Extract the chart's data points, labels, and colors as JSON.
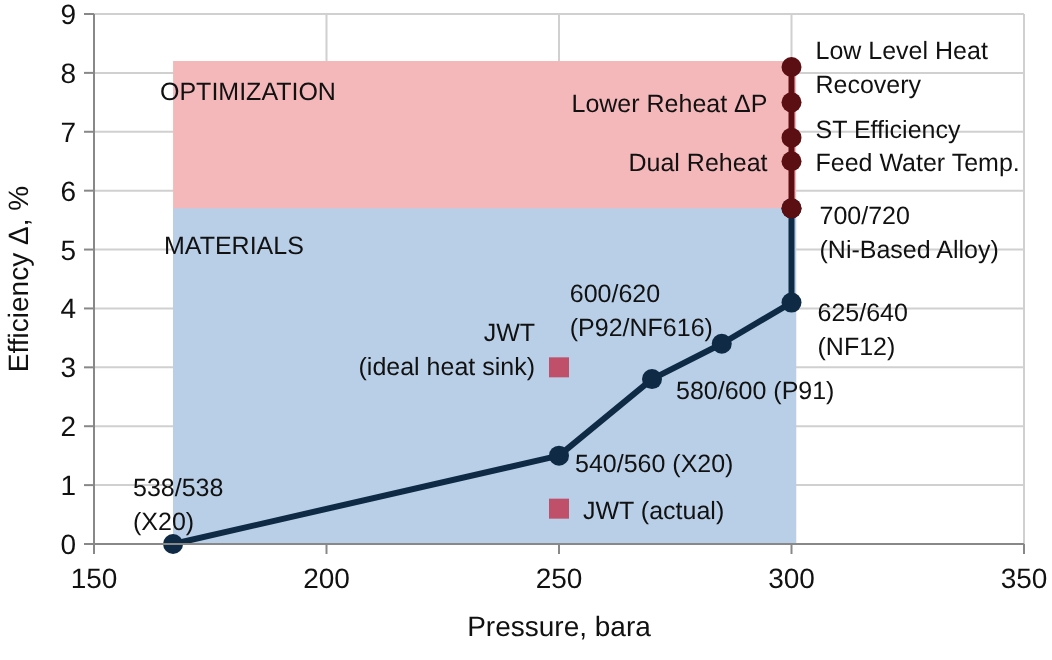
{
  "chart_data": {
    "type": "line",
    "xlabel": "Pressure, bara",
    "ylabel": "Efficiency Δ, %",
    "xlim": [
      150,
      350
    ],
    "xticks": [
      150,
      200,
      250,
      300,
      350
    ],
    "ylim": [
      0,
      9
    ],
    "yticks": [
      0,
      1,
      2,
      3,
      4,
      5,
      6,
      7,
      8,
      9
    ],
    "grid": true,
    "series": [
      {
        "type": "area",
        "color": "#f5b8ba",
        "x": [
          167,
          301
        ],
        "values": [
          8.2,
          8.2
        ]
      },
      {
        "type": "area",
        "color": "#b9cfe7",
        "x": [
          167,
          301
        ],
        "values": [
          5.7,
          5.7
        ]
      },
      {
        "color": "#0e2a44",
        "marker": "circle",
        "x": [
          167,
          250,
          270,
          285,
          300,
          300
        ],
        "values": [
          0,
          1.5,
          2.8,
          3.4,
          4.1,
          5.7
        ]
      },
      {
        "type": "line",
        "color": "#5c0f12",
        "marker": "circle",
        "x": [
          300,
          300,
          300,
          300,
          300
        ],
        "values": [
          5.7,
          6.5,
          6.9,
          7.5,
          8.1
        ]
      },
      {
        "type": "scatter",
        "color": "#c0506a",
        "marker": "square",
        "x": [
          250,
          250
        ],
        "values": [
          3.0,
          0.6
        ]
      }
    ],
    "annotations": [
      "OPTIMIZATION",
      "MATERIALS",
      {
        "text": "538/538\n(X20)",
        "x": 167,
        "y": 0
      },
      {
        "text": "540/560  (X20)",
        "x": 250,
        "y": 1.5
      },
      {
        "text": "580/600  (P91)",
        "x": 270,
        "y": 2.8
      },
      {
        "text": "600/620\n(P92/NF616)",
        "x": 285,
        "y": 3.4
      },
      {
        "text": "625/640\n(NF12)",
        "x": 300,
        "y": 4.1
      },
      {
        "text": "700/720\n(Ni-Based Alloy)",
        "x": 300,
        "y": 5.7
      },
      {
        "text": "Dual Reheat",
        "x": 300,
        "y": 6.5
      },
      {
        "text": "Feed Water Temp.",
        "x": 300,
        "y": 6.5
      },
      {
        "text": "ST Efficiency",
        "x": 300,
        "y": 6.9
      },
      {
        "text": "Lower Reheat ΔP",
        "x": 300,
        "y": 7.5
      },
      {
        "text": "Low Level Heat\nRecovery",
        "x": 300,
        "y": 8.1
      },
      {
        "text": "JWT\n(ideal heat sink)",
        "x": 250,
        "y": 3.0
      },
      {
        "text": "JWT (actual)",
        "x": 250,
        "y": 0.6
      }
    ]
  }
}
